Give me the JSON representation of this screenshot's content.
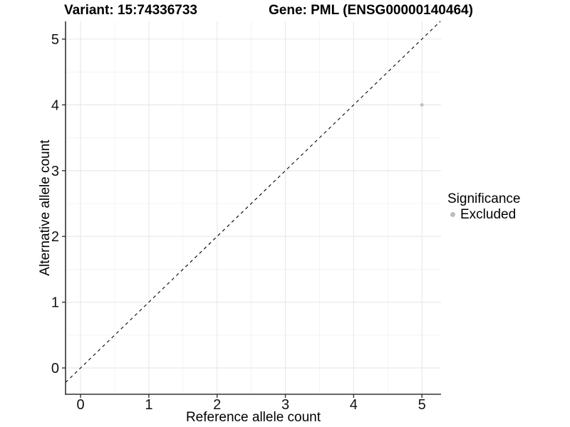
{
  "chart_data": {
    "type": "scatter",
    "title_left": "Variant: 15:74336733",
    "title_right": "Gene: PML (ENSG00000140464)",
    "xlabel": "Reference allele count",
    "ylabel": "Alternative allele count",
    "xticks": [
      "0",
      "1",
      "2",
      "3",
      "4",
      "5"
    ],
    "yticks": [
      "0",
      "1",
      "2",
      "3",
      "4",
      "5"
    ],
    "xtick_values": [
      0,
      1,
      2,
      3,
      4,
      5
    ],
    "ytick_values": [
      0,
      1,
      2,
      3,
      4,
      5
    ],
    "xlim": [
      -0.22,
      5.28
    ],
    "ylim": [
      -0.4,
      5.27
    ],
    "grid": {
      "major": true,
      "minor": true,
      "minor_step": 0.5
    },
    "identity_line": {
      "equation": "y = x",
      "style": "dashed",
      "color": "#000000"
    },
    "series": [
      {
        "name": "Excluded",
        "marker": "circle",
        "color": "#bfbfbf",
        "points": [
          {
            "x": 5,
            "y": 4
          }
        ]
      }
    ],
    "legend": {
      "title": "Significance",
      "position": "right",
      "entries": [
        {
          "label": "Excluded",
          "color": "#bdbdbd"
        }
      ]
    },
    "colors": {
      "background": "#ffffff",
      "axis_line": "#333333",
      "grid_major": "#e9e9e9",
      "grid_minor": "#f4f4f4",
      "tick_label": "#111111",
      "text": "#000000"
    }
  }
}
